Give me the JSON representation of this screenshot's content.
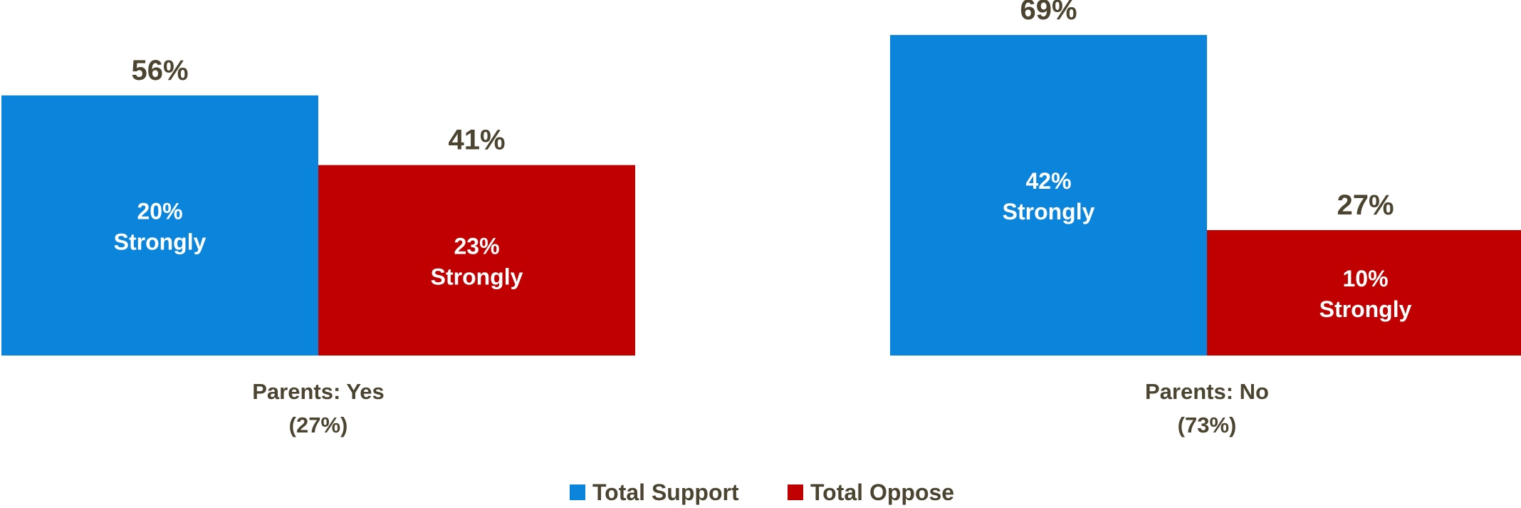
{
  "chart_data": {
    "type": "bar",
    "categories": [
      {
        "name": "Parents: Yes",
        "share": "(27%)"
      },
      {
        "name": "Parents: No",
        "share": "(73%)"
      }
    ],
    "series": [
      {
        "name": "Total Support",
        "color": "#0b84db",
        "values": [
          56,
          69
        ],
        "value_labels": [
          "56%",
          "69%"
        ],
        "inner_labels": [
          {
            "pct": "20%",
            "word": "Strongly"
          },
          {
            "pct": "42%",
            "word": "Strongly"
          }
        ]
      },
      {
        "name": "Total Oppose",
        "color": "#c00000",
        "values": [
          41,
          27
        ],
        "value_labels": [
          "41%",
          "27%"
        ],
        "inner_labels": [
          {
            "pct": "23%",
            "word": "Strongly"
          },
          {
            "pct": "10%",
            "word": "Strongly"
          }
        ]
      }
    ],
    "ylim": [
      0,
      78
    ],
    "grid": false,
    "legend_position": "bottom"
  }
}
